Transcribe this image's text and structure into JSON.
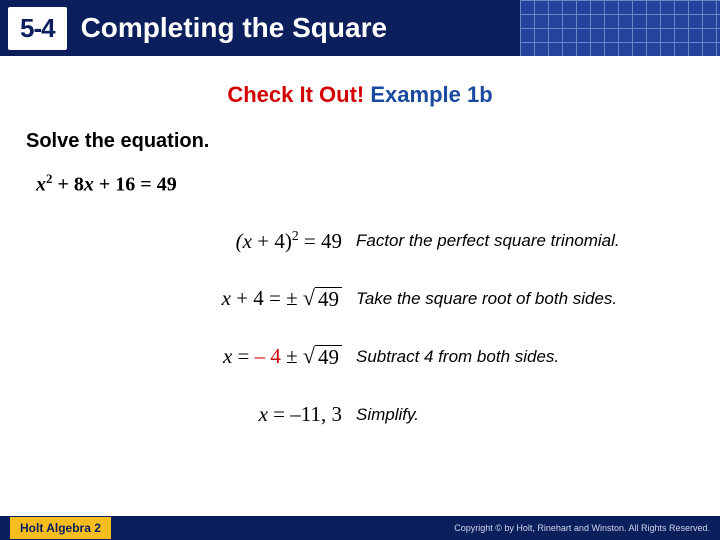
{
  "header": {
    "lesson_number": "5-4",
    "title": "Completing the Square",
    "bg_color": "#0a1f5c",
    "grid_accent": "#23449a"
  },
  "check_it_out": {
    "label_red": "Check It Out!",
    "label_blue": "Example 1b",
    "red_color": "#d20000",
    "blue_color": "#1a4aa0"
  },
  "instruction": "Solve the equation.",
  "main_equation": {
    "var": "x",
    "expr_html": "x² + 8x + 16 = 49"
  },
  "steps": [
    {
      "left_plain": "(x + 4)² = 49",
      "left_type": "plain",
      "explanation": "Factor the perfect square trinomial."
    },
    {
      "left_type": "sqrt",
      "lhs": "x + 4",
      "pm": "±",
      "radicand": "49",
      "explanation": "Take the square root of both sides."
    },
    {
      "left_type": "sqrt_rhs",
      "lhs": "x =",
      "neg": "– 4",
      "pm": "±",
      "radicand": "49",
      "explanation": "Subtract 4 from both sides."
    },
    {
      "left_type": "plain",
      "left_plain": "x = –11, 3",
      "explanation": "Simplify."
    }
  ],
  "footer": {
    "left": "Holt Algebra 2",
    "right": "Copyright © by Holt, Rinehart and Winston. All Rights Reserved.",
    "accent_color": "#f7bd1f"
  }
}
